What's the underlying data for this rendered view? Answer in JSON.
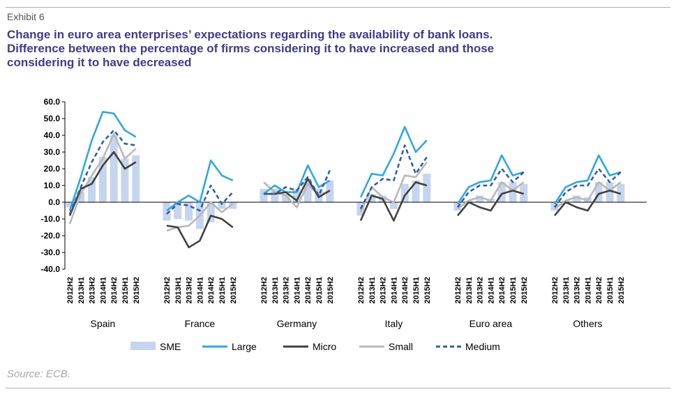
{
  "header": {
    "exhibit": "Exhibit 6",
    "title_lines": [
      "Change in euro area enterprises’ expectations regarding the availability of bank loans.",
      "Difference between the percentage of firms considering it to have increased and those",
      "considering it to have decreased"
    ]
  },
  "source": "Source: ECB.",
  "chart_data": {
    "type": "bar+line",
    "ylim": [
      -40,
      60
    ],
    "yticks": [
      "60.0",
      "50.0",
      "40.0",
      "30.0",
      "20.0",
      "10.0",
      "0.0",
      "-10.0",
      "-20.0",
      "-30.0",
      "-40.0"
    ],
    "periods": [
      "2012H2",
      "2013H1",
      "2013H2",
      "2014H1",
      "2014H2",
      "2015H1",
      "2015H2"
    ],
    "groups": [
      "Spain",
      "France",
      "Germany",
      "Italy",
      "Euro area",
      "Others"
    ],
    "legend": [
      "SME",
      "Large",
      "Micro",
      "Small",
      "Medium"
    ],
    "colors": {
      "SME": "#c5d5ee",
      "Large": "#2ea8df",
      "Micro": "#404040",
      "Small": "#b8b8b8",
      "Medium": "#2b5fa8"
    },
    "series": [
      {
        "name": "SME",
        "type": "bar",
        "values": [
          [
            -3,
            6,
            15,
            27,
            40,
            26,
            28
          ],
          [
            -11,
            -10,
            -11,
            -16,
            -12,
            -4,
            -4
          ],
          [
            8,
            8,
            5,
            8,
            14,
            8,
            13
          ],
          [
            -8,
            5,
            4,
            -4,
            11,
            13,
            17
          ],
          [
            -5,
            1,
            4,
            2,
            12,
            12,
            11
          ],
          [
            -5,
            1,
            4,
            3,
            12,
            12,
            11
          ]
        ]
      },
      {
        "name": "Large",
        "type": "line",
        "values": [
          [
            -5,
            15,
            37,
            54,
            53,
            43,
            39
          ],
          [
            -5,
            0,
            4,
            0,
            25,
            16,
            13
          ],
          [
            5,
            10,
            6,
            6,
            22,
            9,
            13
          ],
          [
            3,
            17,
            16,
            29,
            45,
            30,
            37
          ],
          [
            -1,
            9,
            12,
            13,
            28,
            16,
            18
          ],
          [
            -1,
            9,
            12,
            13,
            28,
            16,
            18
          ]
        ]
      },
      {
        "name": "Micro",
        "type": "line",
        "values": [
          [
            -8,
            8,
            11,
            22,
            30,
            20,
            24
          ],
          [
            -14,
            -15,
            -27,
            -23,
            -8,
            -10,
            -15
          ],
          [
            5,
            5,
            6,
            1,
            14,
            3,
            7
          ],
          [
            -11,
            4,
            2,
            -11,
            4,
            12,
            10
          ],
          [
            -8,
            0,
            -3,
            -5,
            5,
            7,
            5
          ],
          [
            -8,
            0,
            -3,
            -5,
            5,
            7,
            5
          ]
        ]
      },
      {
        "name": "Small",
        "type": "line",
        "values": [
          [
            -13,
            5,
            16,
            26,
            41,
            26,
            32
          ],
          [
            -17,
            -15,
            -14,
            -8,
            0,
            -6,
            -1
          ],
          [
            12,
            6,
            4,
            -3,
            11,
            4,
            7
          ],
          [
            -6,
            9,
            3,
            0,
            16,
            15,
            24
          ],
          [
            -4,
            1,
            3,
            1,
            12,
            7,
            12
          ],
          [
            -4,
            1,
            3,
            1,
            12,
            7,
            12
          ]
        ]
      },
      {
        "name": "Medium",
        "type": "line",
        "values": [
          [
            -7,
            9,
            24,
            36,
            43,
            35,
            34
          ],
          [
            -7,
            -1,
            -2,
            -5,
            10,
            -1,
            6
          ],
          [
            5,
            5,
            9,
            7,
            15,
            4,
            19
          ],
          [
            -4,
            9,
            14,
            13,
            34,
            17,
            27
          ],
          [
            -3,
            6,
            10,
            10,
            20,
            12,
            18
          ],
          [
            -3,
            6,
            10,
            10,
            20,
            12,
            18
          ]
        ]
      }
    ]
  }
}
